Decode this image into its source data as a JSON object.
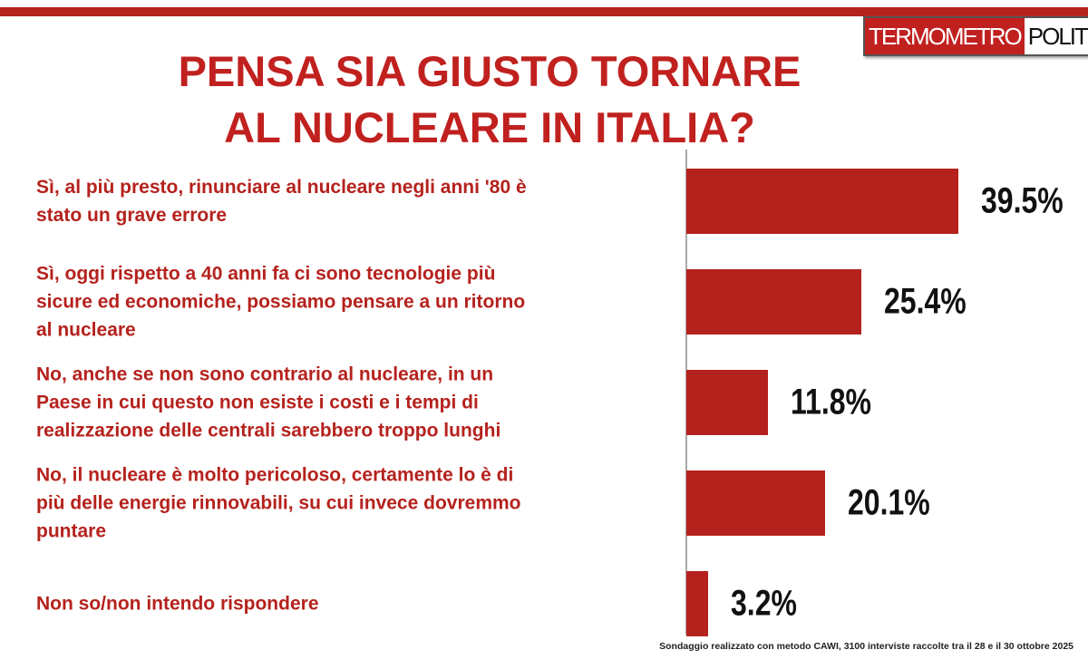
{
  "chart_data": {
    "type": "bar",
    "orientation": "horizontal",
    "title": "PENSA SIA GIUSTO TORNARE\nAL NUCLEARE IN ITALIA?",
    "logo": [
      "TERMOMETRO",
      "POLITICO"
    ],
    "categories": [
      "Sì, al più presto, rinunciare al nucleare negli anni '80 è\nstato un grave errore",
      "Sì, oggi rispetto a 40 anni fa ci sono tecnologie più\nsicure ed economiche, possiamo pensare a un ritorno\nal nucleare",
      "No, anche se non sono contrario al nucleare, in un\nPaese in cui questo non esiste i costi e i tempi di\nrealizzazione delle centrali sarebbero troppo lunghi",
      "No, il nucleare è molto pericoloso, certamente lo è di\npiù delle energie rinnovabili, su cui invece dovremmo\npuntare",
      "Non so/non intendo rispondere"
    ],
    "values": [
      39.5,
      25.4,
      11.8,
      20.1,
      3.2
    ],
    "value_labels": [
      "39.5%",
      "25.4%",
      "11.8%",
      "20.1%",
      "3.2%"
    ],
    "color": "#b5221d",
    "source": "Sondaggio realizzato con metodo CAWI, 3100 interviste raccolte tra il 28 e il 30 ottobre  2025"
  }
}
